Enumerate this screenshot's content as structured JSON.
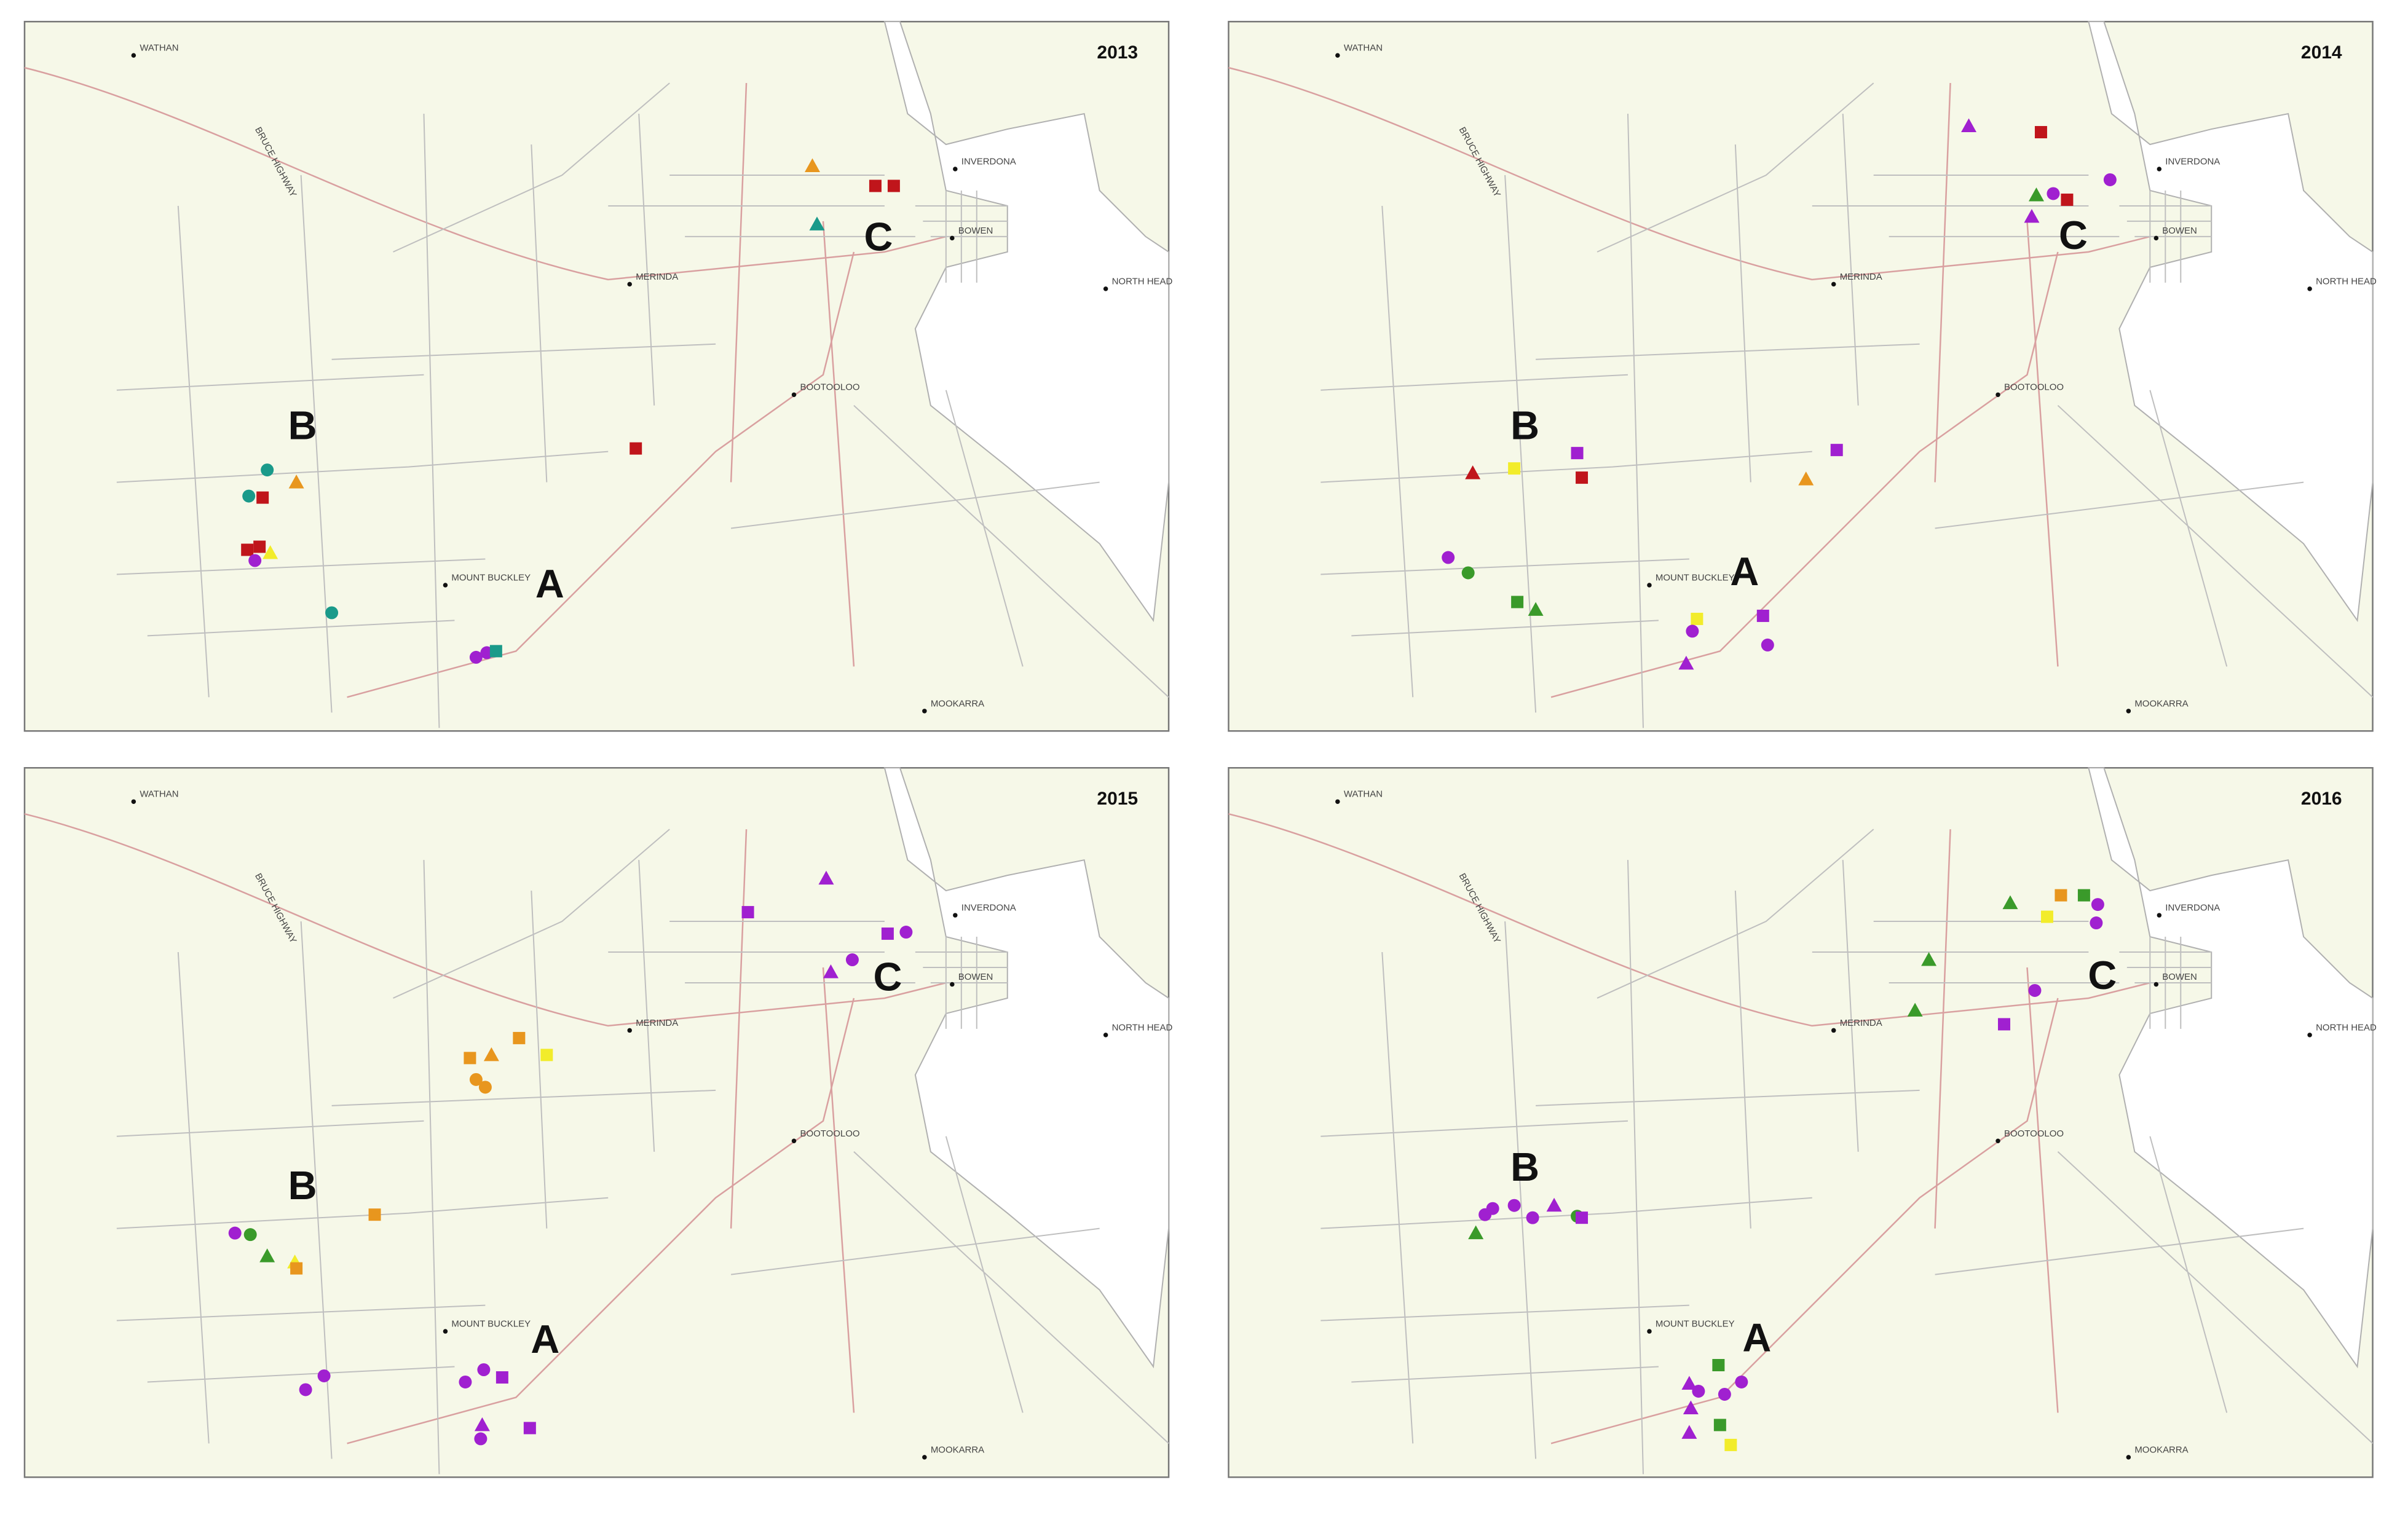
{
  "panels": [
    {
      "year": "2013"
    },
    {
      "year": "2014"
    },
    {
      "year": "2015"
    },
    {
      "year": "2016"
    }
  ],
  "places": [
    "WATHAN",
    "MERINDA",
    "INVERDONA",
    "BOWEN",
    "NORTH HEAD",
    "BOOTOOLOO",
    "MOUNT BUCKLEY",
    "MOOKARRA"
  ],
  "roads": [
    "BRUCE HIGHWAY"
  ],
  "zones": [
    "A",
    "B",
    "C"
  ]
}
